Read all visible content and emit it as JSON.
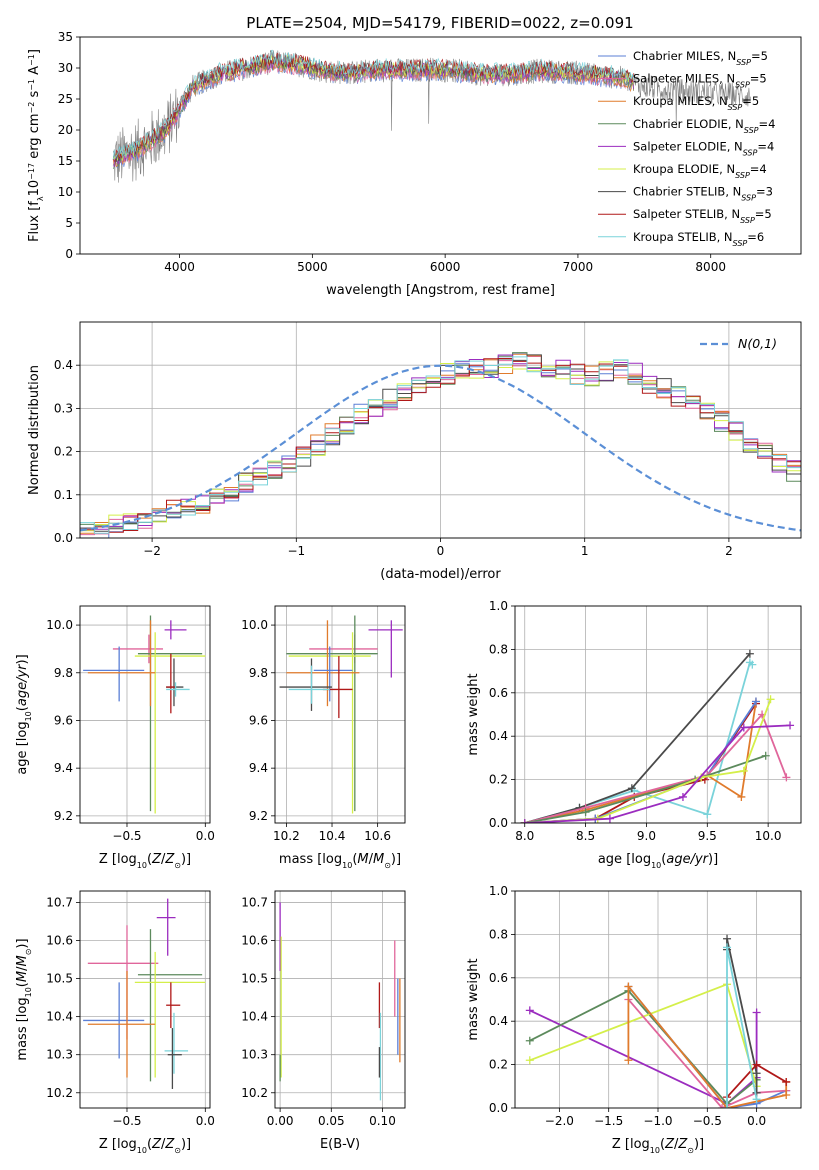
{
  "figure_title": "PLATE=2504, MJD=54179, FIBERID=0022, z=0.091",
  "colors": {
    "cmiles": "#5b7fd6",
    "smiles": "#e0669b",
    "kmiles": "#e07b2c",
    "celodie": "#5c8a5c",
    "selodie": "#9b2cbf",
    "kelodie": "#d4ef4a",
    "cstelib": "#4a4a4a",
    "sstelib": "#b01818",
    "kstelib": "#7ad3da",
    "gauss": "#5b8fd6"
  },
  "chart_data": [
    {
      "id": "spectrum",
      "type": "line",
      "title": "PLATE=2504, MJD=54179, FIBERID=0022, z=0.091",
      "xlabel": "wavelength [Angstrom, rest frame]",
      "ylabel": "Flux [f_λ10^-17 erg cm^-2 s^-1 A^-1]",
      "xlim": [
        3250,
        8680
      ],
      "ylim": [
        0,
        35
      ],
      "xticks": [
        4000,
        5000,
        6000,
        7000,
        8000
      ],
      "yticks": [
        0,
        5,
        10,
        15,
        20,
        25,
        30,
        35
      ],
      "grid": false,
      "legend_position": "right",
      "data_continuum_x": [
        3500,
        3700,
        3900,
        4100,
        4300,
        4500,
        4700,
        4900,
        5100,
        5300,
        5500,
        5700,
        5900,
        6100,
        6300,
        6500,
        6700,
        6900,
        7100,
        7300,
        7500,
        7700,
        7900,
        8100,
        8300
      ],
      "data_continuum_y": [
        15,
        17,
        20,
        27,
        29,
        30,
        31,
        30.5,
        29.5,
        29.2,
        29.7,
        29.6,
        29.8,
        29.5,
        29.0,
        29.0,
        29.5,
        29.4,
        29.0,
        28.5,
        27.0,
        26.5,
        26.2,
        25.8,
        25.5
      ],
      "model_x_range": [
        3500,
        7420
      ],
      "series": [
        {
          "name": "Chabrier MILES, N_SSP=5",
          "color_key": "cmiles"
        },
        {
          "name": "Salpeter MILES, N_SSP=5",
          "color_key": "smiles"
        },
        {
          "name": "Kroupa MILES, N_SSP=5",
          "color_key": "kmiles"
        },
        {
          "name": "Chabrier ELODIE, N_SSP=4",
          "color_key": "celodie"
        },
        {
          "name": "Salpeter ELODIE, N_SSP=4",
          "color_key": "selodie"
        },
        {
          "name": "Kroupa ELODIE, N_SSP=4",
          "color_key": "kelodie"
        },
        {
          "name": "Chabrier STELIB, N_SSP=3",
          "color_key": "cstelib"
        },
        {
          "name": "Salpeter STELIB, N_SSP=5",
          "color_key": "sstelib"
        },
        {
          "name": "Kroupa STELIB, N_SSP=6",
          "color_key": "kstelib"
        }
      ]
    },
    {
      "id": "hist",
      "type": "bar",
      "xlabel": "(data-model)/error",
      "ylabel": "Normed distribution",
      "xlim": [
        -2.5,
        2.5
      ],
      "ylim": [
        0,
        0.5
      ],
      "xticks": [
        -2,
        -1,
        0,
        1,
        2
      ],
      "yticks": [
        0.0,
        0.1,
        0.2,
        0.3,
        0.4
      ],
      "grid": true,
      "legend_position": "top-right",
      "legend": "N(0,1)",
      "bin_width": 0.1,
      "bin_start": -2.5,
      "values": [
        0.02,
        0.02,
        0.03,
        0.035,
        0.04,
        0.05,
        0.065,
        0.07,
        0.08,
        0.095,
        0.11,
        0.13,
        0.145,
        0.16,
        0.175,
        0.19,
        0.215,
        0.24,
        0.265,
        0.285,
        0.305,
        0.32,
        0.34,
        0.355,
        0.37,
        0.38,
        0.385,
        0.39,
        0.395,
        0.4,
        0.405,
        0.4,
        0.395,
        0.39,
        0.38,
        0.375,
        0.385,
        0.39,
        0.38,
        0.36,
        0.345,
        0.33,
        0.31,
        0.29,
        0.27,
        0.245,
        0.22,
        0.2,
        0.175,
        0.155
      ]
    },
    {
      "id": "age_vs_Z",
      "type": "scatter",
      "xlabel": "Z [log10(Z/Z⊙)]",
      "ylabel": "age [log10(age/yr)]",
      "xlim": [
        -0.8,
        0.03
      ],
      "ylim": [
        9.17,
        10.08
      ],
      "xticks": [
        -0.5,
        0.0
      ],
      "yticks": [
        9.2,
        9.4,
        9.6,
        9.8,
        10.0
      ],
      "grid": true,
      "points": [
        {
          "c": "smiles",
          "x": -0.36,
          "y": 9.9,
          "xl": 0.23,
          "xr": 0.09,
          "yl": 0.06,
          "yu": 0.06
        },
        {
          "c": "selodie",
          "x": -0.22,
          "y": 9.98,
          "xl": 0.04,
          "xr": 0.1,
          "yl": 0.04,
          "yu": 0.04
        },
        {
          "c": "celodie",
          "x": -0.35,
          "y": 9.88,
          "xl": 0.08,
          "xr": 0.33,
          "yl": 0.66,
          "yu": 0.16
        },
        {
          "c": "kelodie",
          "x": -0.32,
          "y": 9.87,
          "xl": 0.13,
          "xr": 0.32,
          "yl": 0.66,
          "yu": 0.1
        },
        {
          "c": "cmiles",
          "x": -0.55,
          "y": 9.81,
          "xl": 0.23,
          "xr": 0.16,
          "yl": 0.13,
          "yu": 0.1
        },
        {
          "c": "kmiles",
          "x": -0.35,
          "y": 9.8,
          "xl": 0.4,
          "xr": 0.03,
          "yl": 0.14,
          "yu": 0.22
        },
        {
          "c": "cstelib",
          "x": -0.2,
          "y": 9.74,
          "xl": 0.05,
          "xr": 0.06,
          "yl": 0.08,
          "yu": 0.12
        },
        {
          "c": "sstelib",
          "x": -0.22,
          "y": 9.74,
          "xl": 0.03,
          "xr": 0.03,
          "yl": 0.11,
          "yu": 0.14
        },
        {
          "c": "kstelib",
          "x": -0.19,
          "y": 9.73,
          "xl": 0.06,
          "xr": 0.09,
          "yl": 0.03,
          "yu": 0.03
        }
      ]
    },
    {
      "id": "age_vs_mass",
      "type": "scatter",
      "xlabel": "mass [log10(M/M⊙)]",
      "ylabel": "",
      "xlim": [
        10.15,
        10.72
      ],
      "ylim": [
        9.17,
        10.08
      ],
      "xticks": [
        10.2,
        10.4,
        10.6
      ],
      "yticks": [
        9.2,
        9.4,
        9.6,
        9.8,
        10.0
      ],
      "grid": true,
      "points": [
        {
          "c": "selodie",
          "x": 10.66,
          "y": 9.98,
          "xl": 0.1,
          "xr": 0.05,
          "yl": 0.2,
          "yu": 0.04
        },
        {
          "c": "smiles",
          "x": 10.5,
          "y": 9.9,
          "xl": 0.2,
          "xr": 0.1,
          "yl": 0.06,
          "yu": 0.06
        },
        {
          "c": "celodie",
          "x": 10.5,
          "y": 9.88,
          "xl": 0.3,
          "xr": 0.1,
          "yl": 0.66,
          "yu": 0.16
        },
        {
          "c": "kelodie",
          "x": 10.49,
          "y": 9.87,
          "xl": 0.28,
          "xr": 0.08,
          "yl": 0.66,
          "yu": 0.1
        },
        {
          "c": "kmiles",
          "x": 10.38,
          "y": 9.8,
          "xl": 0.18,
          "xr": 0.14,
          "yl": 0.14,
          "yu": 0.22
        },
        {
          "c": "cmiles",
          "x": 10.39,
          "y": 9.81,
          "xl": 0.07,
          "xr": 0.1,
          "yl": 0.13,
          "yu": 0.1
        },
        {
          "c": "cstelib",
          "x": 10.31,
          "y": 9.74,
          "xl": 0.14,
          "xr": 0.09,
          "yl": 0.1,
          "yu": 0.12
        },
        {
          "c": "sstelib",
          "x": 10.43,
          "y": 9.73,
          "xl": 0.07,
          "xr": 0.06,
          "yl": 0.12,
          "yu": 0.14
        },
        {
          "c": "kstelib",
          "x": 10.31,
          "y": 9.73,
          "xl": 0.1,
          "xr": 0.08,
          "yl": 0.06,
          "yu": 0.1
        }
      ]
    },
    {
      "id": "weight_vs_age",
      "type": "line",
      "xlabel": "age [log10(age/yr)]",
      "ylabel": "mass weight",
      "xlim": [
        7.92,
        10.27
      ],
      "ylim": [
        0,
        1
      ],
      "xticks": [
        8.0,
        8.5,
        9.0,
        9.5,
        10.0
      ],
      "yticks": [
        0.0,
        0.2,
        0.4,
        0.6,
        0.8,
        1.0
      ],
      "grid": true,
      "series": [
        {
          "c": "kstelib",
          "x": [
            8.0,
            8.45,
            8.9,
            9.5,
            9.85,
            9.87
          ],
          "y": [
            0.0,
            0.07,
            0.15,
            0.04,
            0.74,
            0.73
          ]
        },
        {
          "c": "cstelib",
          "x": [
            8.0,
            8.45,
            8.88,
            9.85
          ],
          "y": [
            0.0,
            0.07,
            0.16,
            0.78
          ]
        },
        {
          "c": "sstelib",
          "x": [
            8.0,
            8.58,
            8.9,
            9.48,
            9.9
          ],
          "y": [
            0.0,
            0.02,
            0.12,
            0.2,
            0.55
          ]
        },
        {
          "c": "kmiles",
          "x": [
            8.0,
            8.5,
            9.5,
            9.78,
            9.9
          ],
          "y": [
            0.0,
            0.06,
            0.22,
            0.12,
            0.56
          ]
        },
        {
          "c": "cmiles",
          "x": [
            8.0,
            8.58,
            9.5,
            9.9
          ],
          "y": [
            0.0,
            0.02,
            0.22,
            0.56
          ]
        },
        {
          "c": "smiles",
          "x": [
            8.0,
            8.5,
            9.5,
            9.95,
            10.15
          ],
          "y": [
            0.0,
            0.07,
            0.22,
            0.5,
            0.21
          ]
        },
        {
          "c": "celodie",
          "x": [
            8.0,
            8.5,
            9.4,
            9.98
          ],
          "y": [
            0.0,
            0.05,
            0.2,
            0.31
          ]
        },
        {
          "c": "kelodie",
          "x": [
            8.0,
            8.6,
            9.45,
            9.8,
            10.02
          ],
          "y": [
            0.0,
            0.02,
            0.21,
            0.24,
            0.57
          ]
        },
        {
          "c": "selodie",
          "x": [
            8.0,
            8.7,
            9.3,
            9.8,
            10.18
          ],
          "y": [
            0.0,
            0.02,
            0.12,
            0.44,
            0.45
          ]
        }
      ]
    },
    {
      "id": "mass_vs_Z",
      "type": "scatter",
      "xlabel": "Z [log10(Z/Z⊙)]",
      "ylabel": "mass [log10(M/M⊙)]",
      "xlim": [
        -0.8,
        0.03
      ],
      "ylim": [
        10.16,
        10.73
      ],
      "xticks": [
        -0.5,
        0.0
      ],
      "yticks": [
        10.2,
        10.3,
        10.4,
        10.5,
        10.6,
        10.7
      ],
      "grid": true,
      "points": [
        {
          "c": "selodie",
          "x": -0.24,
          "y": 10.66,
          "xl": 0.07,
          "xr": 0.05,
          "yl": 0.1,
          "yu": 0.05
        },
        {
          "c": "smiles",
          "x": -0.5,
          "y": 10.54,
          "xl": 0.25,
          "xr": 0.2,
          "yl": 0.2,
          "yu": 0.1
        },
        {
          "c": "celodie",
          "x": -0.35,
          "y": 10.51,
          "xl": 0.08,
          "xr": 0.33,
          "yl": 0.28,
          "yu": 0.12
        },
        {
          "c": "kelodie",
          "x": -0.32,
          "y": 10.49,
          "xl": 0.13,
          "xr": 0.32,
          "yl": 0.25,
          "yu": 0.08
        },
        {
          "c": "sstelib",
          "x": -0.22,
          "y": 10.43,
          "xl": 0.03,
          "xr": 0.06,
          "yl": 0.06,
          "yu": 0.06
        },
        {
          "c": "cmiles",
          "x": -0.55,
          "y": 10.39,
          "xl": 0.23,
          "xr": 0.16,
          "yl": 0.1,
          "yu": 0.1
        },
        {
          "c": "kmiles",
          "x": -0.5,
          "y": 10.38,
          "xl": 0.25,
          "xr": 0.18,
          "yl": 0.14,
          "yu": 0.14
        },
        {
          "c": "kstelib",
          "x": -0.2,
          "y": 10.31,
          "xl": 0.06,
          "xr": 0.09,
          "yl": 0.06,
          "yu": 0.1
        },
        {
          "c": "cstelib",
          "x": -0.21,
          "y": 10.3,
          "xl": 0.03,
          "xr": 0.06,
          "yl": 0.09,
          "yu": 0.07
        }
      ]
    },
    {
      "id": "mass_vs_ebv",
      "type": "scatter",
      "xlabel": "E(B-V)",
      "ylabel": "",
      "xlim": [
        -0.005,
        0.122
      ],
      "ylim": [
        10.16,
        10.73
      ],
      "xticks": [
        0.0,
        0.05,
        0.1
      ],
      "yticks": [
        10.2,
        10.3,
        10.4,
        10.5,
        10.6,
        10.7
      ],
      "grid": true,
      "points": [
        {
          "c": "selodie",
          "x": 0.0,
          "y": 10.62,
          "xl": 0,
          "xr": 0,
          "yl": 0.1,
          "yu": 0.08
        },
        {
          "c": "kelodie",
          "x": 0.001,
          "y": 10.49,
          "xl": 0,
          "xr": 0,
          "yl": 0.25,
          "yu": 0.12
        },
        {
          "c": "celodie",
          "x": 0.0,
          "y": 10.26,
          "xl": 0,
          "xr": 0,
          "yl": 0.03,
          "yu": 0.04
        },
        {
          "c": "sstelib",
          "x": 0.097,
          "y": 10.43,
          "xl": 0,
          "xr": 0,
          "yl": 0.06,
          "yu": 0.06
        },
        {
          "c": "kstelib",
          "x": 0.098,
          "y": 10.31,
          "xl": 0,
          "xr": 0,
          "yl": 0.13,
          "yu": 0.1
        },
        {
          "c": "cstelib",
          "x": 0.097,
          "y": 10.28,
          "xl": 0,
          "xr": 0,
          "yl": 0.04,
          "yu": 0.04
        },
        {
          "c": "smiles",
          "x": 0.112,
          "y": 10.5,
          "xl": 0,
          "xr": 0,
          "yl": 0.1,
          "yu": 0.1
        },
        {
          "c": "kmiles",
          "x": 0.117,
          "y": 10.38,
          "xl": 0,
          "xr": 0,
          "yl": 0.1,
          "yu": 0.12
        },
        {
          "c": "cmiles",
          "x": 0.115,
          "y": 10.4,
          "xl": 0,
          "xr": 0,
          "yl": 0.1,
          "yu": 0.1
        }
      ]
    },
    {
      "id": "weight_vs_Z",
      "type": "line",
      "xlabel": "Z [log10(Z/Z⊙)]",
      "ylabel": "mass weight",
      "xlim": [
        -2.45,
        0.45
      ],
      "ylim": [
        0,
        1
      ],
      "xticks": [
        -2.0,
        -1.5,
        -1.0,
        -0.5,
        0.0
      ],
      "yticks": [
        0.0,
        0.2,
        0.4,
        0.6,
        0.8,
        1.0
      ],
      "grid": true,
      "series": [
        {
          "c": "selodie",
          "x": [
            -2.3,
            -0.3,
            0.0,
            0.0
          ],
          "y": [
            0.45,
            0.02,
            0.14,
            0.44
          ]
        },
        {
          "c": "celodie",
          "x": [
            -2.3,
            -1.3,
            -0.3,
            0.0
          ],
          "y": [
            0.31,
            0.54,
            0.02,
            0.13
          ]
        },
        {
          "c": "kelodie",
          "x": [
            -2.3,
            -0.3,
            0.0
          ],
          "y": [
            0.22,
            0.57,
            0.1
          ]
        },
        {
          "c": "cmiles",
          "x": [
            -1.3,
            -0.3,
            0.0,
            0.3
          ],
          "y": [
            0.56,
            0.0,
            0.02,
            0.08
          ]
        },
        {
          "c": "smiles",
          "x": [
            -1.3,
            -0.35,
            0.0,
            0.3
          ],
          "y": [
            0.5,
            0.0,
            0.07,
            0.08
          ]
        },
        {
          "c": "kmiles",
          "x": [
            -1.3,
            -1.3,
            -0.3,
            0.3,
            0.3
          ],
          "y": [
            0.22,
            0.56,
            0.0,
            0.06,
            0.12
          ]
        },
        {
          "c": "cstelib",
          "x": [
            -0.3,
            -0.3,
            0.0,
            0.0
          ],
          "y": [
            0.73,
            0.78,
            0.16,
            0.07
          ]
        },
        {
          "c": "sstelib",
          "x": [
            -0.3,
            0.0,
            0.3
          ],
          "y": [
            0.05,
            0.2,
            0.12
          ]
        },
        {
          "c": "kstelib",
          "x": [
            -0.3,
            -0.3,
            0.0
          ],
          "y": [
            0.0,
            0.74,
            0.04
          ]
        }
      ]
    }
  ]
}
